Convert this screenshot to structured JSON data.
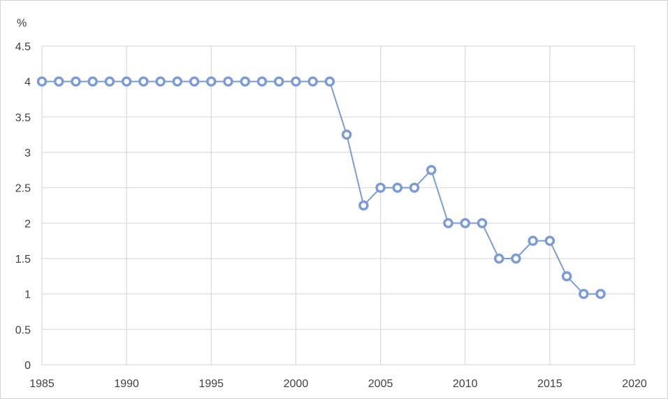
{
  "chart_data": {
    "type": "line",
    "title": "",
    "xlabel": "",
    "ylabel": "%",
    "xlim": [
      1985,
      2020
    ],
    "ylim": [
      0,
      4.5
    ],
    "x_ticks": [
      1985,
      1990,
      1995,
      2000,
      2005,
      2010,
      2015,
      2020
    ],
    "y_ticks": [
      0,
      0.5,
      1,
      1.5,
      2,
      2.5,
      3,
      3.5,
      4,
      4.5
    ],
    "grid": true,
    "legend": "none",
    "series": [
      {
        "color": "#7b9bd8",
        "marker": "circle-hollow",
        "x": [
          1985,
          1986,
          1987,
          1988,
          1989,
          1990,
          1991,
          1992,
          1993,
          1994,
          1995,
          1996,
          1997,
          1998,
          1999,
          2000,
          2001,
          2002,
          2003,
          2004,
          2005,
          2006,
          2007,
          2008,
          2009,
          2010,
          2011,
          2012,
          2013,
          2014,
          2015,
          2016,
          2017,
          2018
        ],
        "y": [
          4,
          4,
          4,
          4,
          4,
          4,
          4,
          4,
          4,
          4,
          4,
          4,
          4,
          4,
          4,
          4,
          4,
          4,
          3.25,
          2.25,
          2.5,
          2.5,
          2.5,
          2.75,
          2,
          2,
          2,
          1.5,
          1.5,
          1.75,
          1.75,
          1.25,
          1,
          1
        ]
      }
    ]
  },
  "colors": {
    "grid": "#d9d9d9",
    "axis_text": "#404040",
    "line": "#7b9bd8"
  }
}
